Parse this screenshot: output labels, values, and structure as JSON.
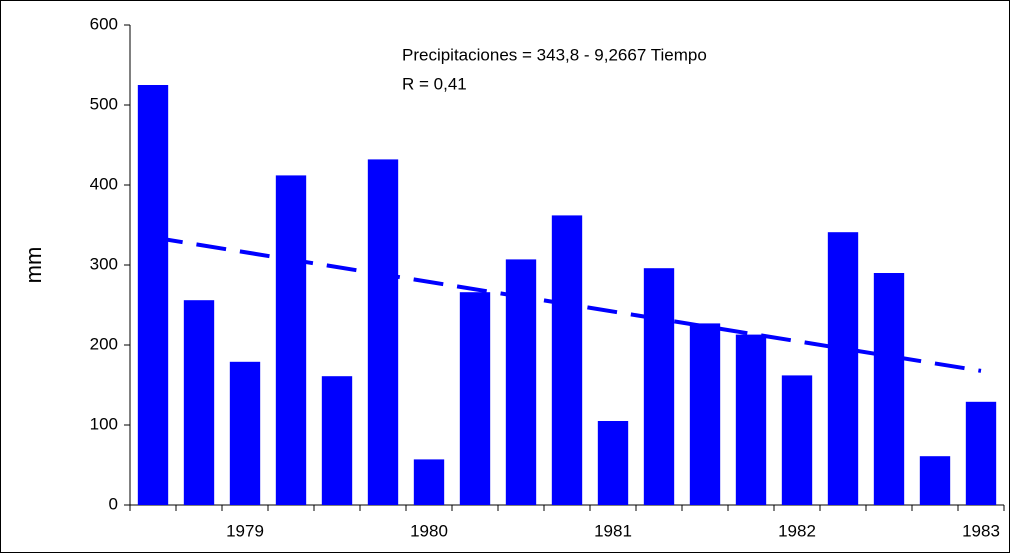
{
  "chart_data": {
    "type": "bar",
    "y_label": "mm",
    "annotations": [
      "Precipitaciones = 343,8 - 9,2667 Tiempo",
      "R = 0,41"
    ],
    "categories": [
      null,
      null,
      "1979",
      null,
      null,
      null,
      "1980",
      null,
      null,
      null,
      "1981",
      null,
      null,
      null,
      "1982",
      null,
      null,
      null,
      "1983"
    ],
    "values": [
      525,
      256,
      179,
      412,
      161,
      432,
      57,
      266,
      307,
      362,
      105,
      296,
      227,
      213,
      162,
      341,
      290,
      61,
      129
    ],
    "color": "#0000ff",
    "trend": {
      "color": "#0000ff",
      "values": [
        334.5,
        167.7
      ]
    },
    "ylim": [
      0,
      600
    ],
    "yticks": [
      0,
      100,
      200,
      300,
      400,
      500,
      600
    ]
  }
}
